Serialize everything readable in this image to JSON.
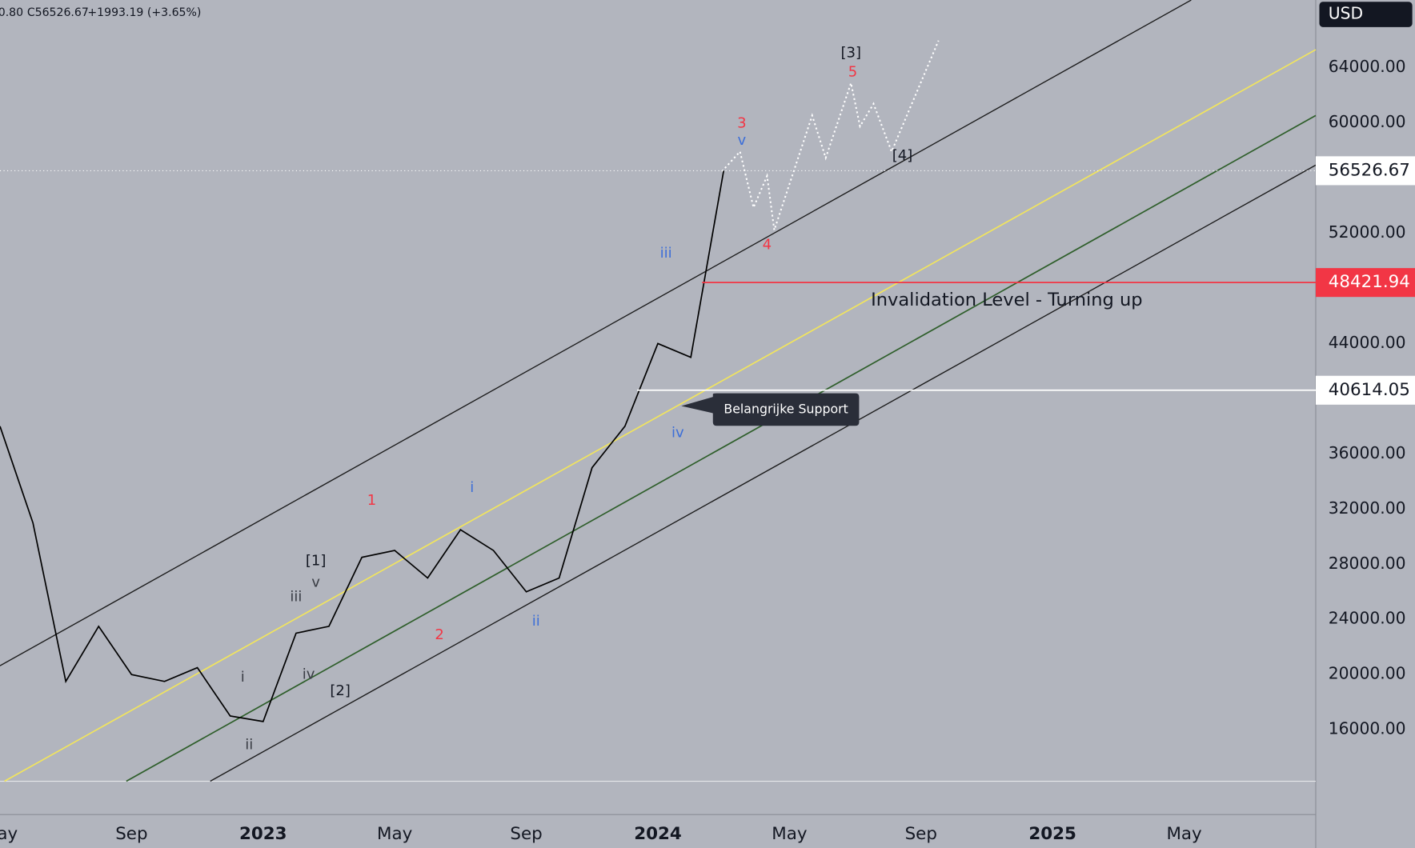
{
  "chart_data": {
    "type": "line",
    "header": [
      "0.80",
      "C56526.67",
      "+1993.19 (+3.65%)"
    ],
    "currency": "USD",
    "x": [
      "2022-05",
      "2022-06",
      "2022-07",
      "2022-08",
      "2022-09",
      "2022-10",
      "2022-11",
      "2022-12",
      "2023-01",
      "2023-02",
      "2023-03",
      "2023-04",
      "2023-05",
      "2023-06",
      "2023-07",
      "2023-08",
      "2023-09",
      "2023-10",
      "2023-11",
      "2023-12",
      "2024-01",
      "2024-02",
      "2024-03"
    ],
    "values": [
      38000,
      31000,
      19500,
      23500,
      20000,
      19500,
      20500,
      17000,
      16600,
      23000,
      23500,
      28500,
      29000,
      27000,
      30500,
      29000,
      26000,
      27000,
      35000,
      38000,
      44000,
      43000,
      56526.67
    ],
    "color": "#000000",
    "xlim": [
      "2022-05",
      "2025-09"
    ],
    "xticks": [
      {
        "value": "2022-05",
        "label": "May"
      },
      {
        "value": "2022-09",
        "label": "Sep"
      },
      {
        "value": "2023-01",
        "label": "2023"
      },
      {
        "value": "2023-05",
        "label": "May"
      },
      {
        "value": "2023-09",
        "label": "Sep"
      },
      {
        "value": "2024-01",
        "label": "2024"
      },
      {
        "value": "2024-05",
        "label": "May"
      },
      {
        "value": "2024-09",
        "label": "Sep"
      },
      {
        "value": "2025-01",
        "label": "2025"
      },
      {
        "value": "2025-05",
        "label": "May"
      }
    ],
    "ylim": [
      9850,
      68900
    ],
    "yticks": [
      {
        "value": 16000,
        "label": "16000.00"
      },
      {
        "value": 20000,
        "label": "20000.00"
      },
      {
        "value": 24000,
        "label": "24000.00"
      },
      {
        "value": 28000,
        "label": "28000.00"
      },
      {
        "value": 32000,
        "label": "32000.00"
      },
      {
        "value": 36000,
        "label": "36000.00"
      },
      {
        "value": 44000,
        "label": "44000.00"
      },
      {
        "value": 52000,
        "label": "52000.00"
      },
      {
        "value": 60000,
        "label": "60000.00"
      },
      {
        "value": 64000,
        "label": "64000.00"
      }
    ],
    "price_lines": [
      56526.67,
      48421.94,
      40614.05
    ],
    "annotations": [
      "Invalidation Level - Turning up",
      "Belangrijke Support"
    ],
    "wave_labels": [
      "1",
      "2",
      "3",
      "4",
      "5",
      "i",
      "ii",
      "iii",
      "iv",
      "v",
      "i",
      "ii",
      "iii",
      "iv",
      "v",
      "[1]",
      "[2]",
      "[3]",
      "[4]"
    ]
  }
}
